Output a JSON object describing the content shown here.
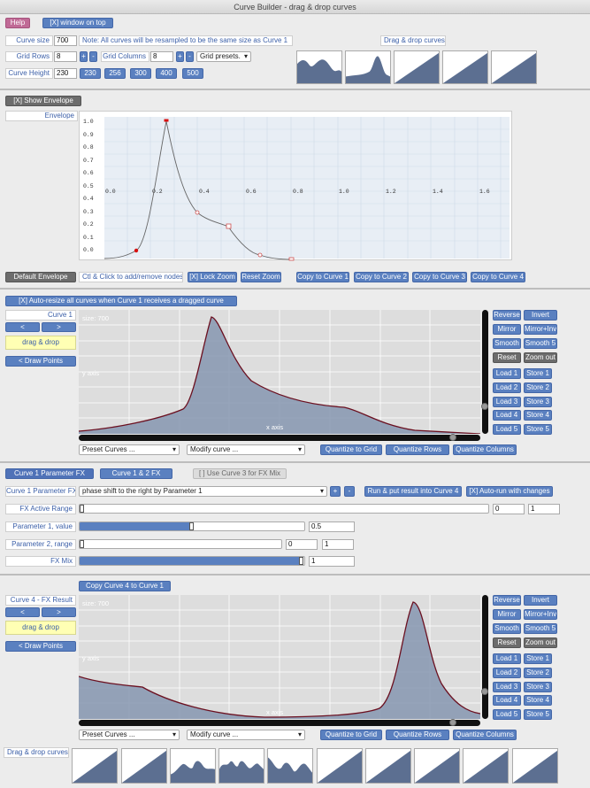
{
  "window": {
    "title": "Curve Builder - drag & drop curves"
  },
  "top": {
    "help": "Help",
    "window_on_top": "[X] window on top",
    "curve_size_label": "Curve size",
    "curve_size_value": "700",
    "note": "Note: All curves will be resampled to be the same size as Curve 1",
    "drag_drop_label": "Drag & drop curves",
    "grid_rows_label": "Grid Rows",
    "grid_rows_value": "8",
    "grid_cols_label": "Grid Columns",
    "grid_cols_value": "8",
    "plus": "+",
    "minus": "-",
    "grid_presets": "Grid presets.",
    "curve_height_label": "Curve Height",
    "curve_height_value": "230",
    "height_presets": [
      "230",
      "256",
      "300",
      "400",
      "500"
    ]
  },
  "envelope": {
    "show": "[X] Show Envelope",
    "label": "Envelope",
    "y_ticks": [
      "1.0",
      "0.9",
      "0.8",
      "0.7",
      "0.6",
      "0.5",
      "0.4",
      "0.3",
      "0.2",
      "0.1",
      "0.0"
    ],
    "x_ticks": [
      "0.0",
      "0.2",
      "0.4",
      "0.6",
      "0.8",
      "1.0",
      "1.2",
      "1.4",
      "1.6"
    ],
    "default": "Default Envelope",
    "hint": "Ctl & Click to add/remove nodes",
    "lock_zoom": "[X] Lock Zoom",
    "reset_zoom": "Reset Zoom",
    "copy": [
      "Copy to Curve 1",
      "Copy to Curve 2",
      "Copy to Curve 3",
      "Copy to Curve 4"
    ]
  },
  "curve1": {
    "auto_resize": "[X] Auto-resize all curves when Curve 1 receives a dragged curve",
    "label": "Curve 1",
    "prev": "<",
    "next": ">",
    "drag_drop": "drag & drop",
    "draw_points": "< Draw Points",
    "size_text": "size: 700",
    "y_axis": "y axis",
    "x_axis": "x axis",
    "preset": "Preset Curves ...",
    "modify": "Modify curve ...",
    "quantize_grid": "Quantize to Grid",
    "quantize_rows": "Quantize Rows",
    "quantize_cols": "Quantize Columns"
  },
  "side_buttons": {
    "reverse": "Reverse",
    "invert": "Invert",
    "mirror": "Mirror",
    "mirror_inv": "Mirror+Inv",
    "smooth": "Smooth",
    "smooth5": "Smooth 5",
    "reset": "Reset",
    "zoom_out": "Zoom out",
    "loads": [
      "Load 1",
      "Load 2",
      "Load 3",
      "Load 4",
      "Load 5"
    ],
    "stores": [
      "Store 1",
      "Store 2",
      "Store 3",
      "Store 4",
      "Store 5"
    ]
  },
  "fx": {
    "tab1": "Curve 1 Parameter FX",
    "tab2": "Curve 1 & 2 FX",
    "use_curve3": "[ ] Use Curve 3 for FX Mix",
    "param_fx_label": "Curve 1 Parameter FX",
    "param_fx_value": "phase shift to the right by Parameter 1",
    "run": "Run & put result into Curve 4",
    "auto_run": "[X] Auto-run with changes",
    "active_range": "FX Active Range",
    "range_lo": "0",
    "range_hi": "1",
    "p1_label": "Parameter 1, value",
    "p1_value": "0.5",
    "p1_level": 0.5,
    "p2_label": "Parameter 2, range",
    "p2_lo": "0",
    "p2_hi": "1",
    "mix_label": "FX Mix",
    "mix_value": "1",
    "mix_level": 1.0
  },
  "curve4": {
    "copy_to_1": "Copy Curve 4 to Curve 1",
    "label": "Curve 4 - FX Result",
    "prev": "<",
    "next": ">",
    "drag_drop": "drag & drop",
    "draw_points": "< Draw Points",
    "size_text": "size: 700",
    "y_axis": "y axis",
    "x_axis": "x axis",
    "preset": "Preset Curves ...",
    "modify": "Modify curve ...",
    "quantize_grid": "Quantize to Grid",
    "quantize_rows": "Quantize Rows",
    "quantize_cols": "Quantize Columns"
  },
  "bottom": {
    "drag_drop_label": "Drag & drop curves"
  },
  "colors": {
    "accent": "#5a80c0",
    "fill": "#8a9bb5",
    "curve_line": "#6b1020",
    "drag": "#ffffb4"
  }
}
